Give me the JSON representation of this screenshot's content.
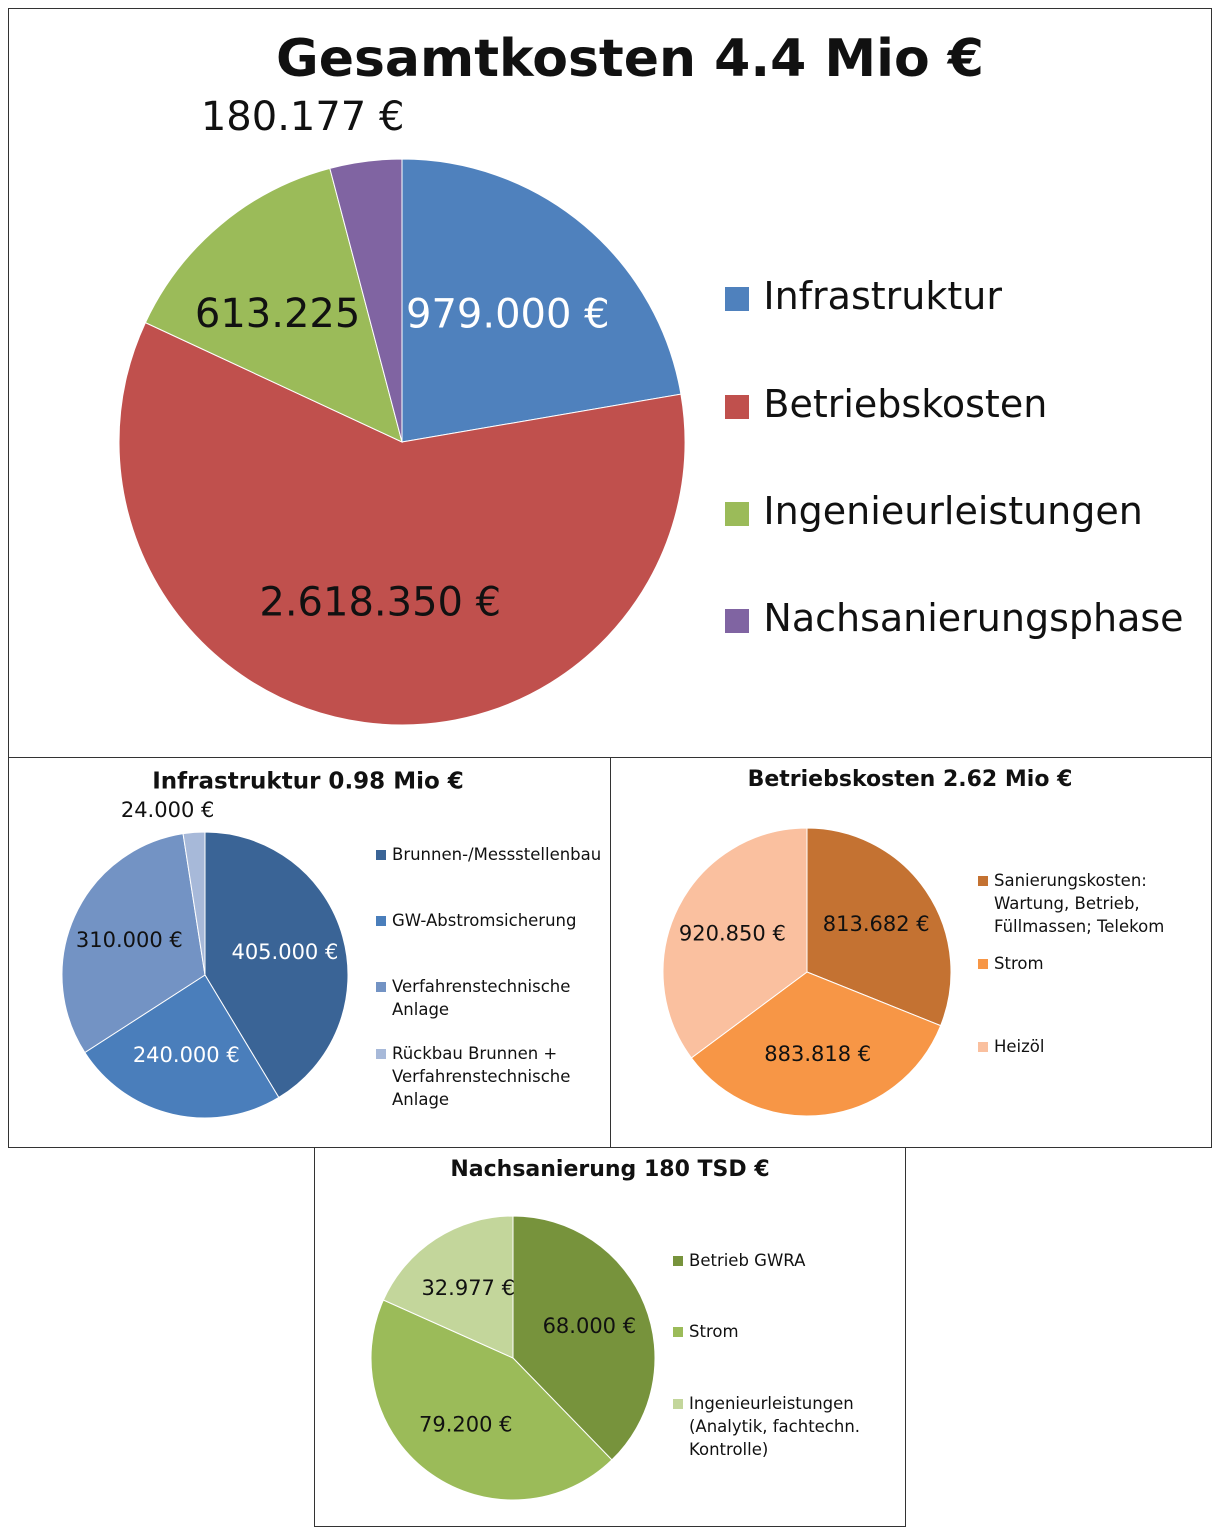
{
  "chart_data": [
    {
      "type": "pie",
      "title": "Gesamtkosten 4.4 Mio €",
      "categories": [
        "Infrastruktur",
        "Betriebskosten",
        "Ingenieurleistungen",
        "Nachsanierungsphase"
      ],
      "values": [
        979000,
        2618350,
        613225,
        180177
      ],
      "value_labels": [
        "979.000 €",
        "2.618.350 €",
        "613.225 €",
        "180.177 €"
      ],
      "colors": [
        "#4f81bd",
        "#c0504d",
        "#9bbb59",
        "#8064a2"
      ],
      "value_label_colors": [
        "#ffffff",
        "#111111",
        "#111111",
        "#111111"
      ],
      "legend": "right"
    },
    {
      "type": "pie",
      "title": "Infrastruktur 0.98 Mio €",
      "categories": [
        "Brunnen-/Messstellenbau",
        "GW-Abstromsicherung",
        "Verfahrenstechnische Anlage",
        "Rückbau Brunnen + Verfahrenstechnische Anlage"
      ],
      "values": [
        405000,
        240000,
        310000,
        24000
      ],
      "value_labels": [
        "405.000 €",
        "240.000 €",
        "310.000 €",
        "24.000 €"
      ],
      "colors": [
        "#3a6496",
        "#4a7ebb",
        "#7393c4",
        "#a7b9d9"
      ],
      "value_label_colors": [
        "#ffffff",
        "#ffffff",
        "#111111",
        "#111111"
      ],
      "legend": "right"
    },
    {
      "type": "pie",
      "title": "Betriebskosten 2.62 Mio €",
      "categories": [
        "Sanierungskosten: Wartung, Betrieb, Füllmassen; Telekom",
        "Strom",
        "Heizöl"
      ],
      "values": [
        813682,
        883818,
        920850
      ],
      "value_labels": [
        "813.682 €",
        "883.818 €",
        "920.850 €"
      ],
      "colors": [
        "#c47232",
        "#f79646",
        "#fac09f"
      ],
      "value_label_colors": [
        "#111111",
        "#111111",
        "#111111"
      ],
      "legend": "right"
    },
    {
      "type": "pie",
      "title": "Nachsanierung 180 TSD €",
      "categories": [
        "Betrieb GWRA",
        "Strom",
        "Ingenieurleistungen (Analytik, fachtechn. Kontrolle)"
      ],
      "values": [
        68000,
        79200,
        32977
      ],
      "value_labels": [
        "68.000 €",
        "79.200 €",
        "32.977 €"
      ],
      "colors": [
        "#77933c",
        "#9bbb59",
        "#c3d69b"
      ],
      "value_label_colors": [
        "#111111",
        "#111111",
        "#111111"
      ],
      "legend": "right"
    }
  ]
}
